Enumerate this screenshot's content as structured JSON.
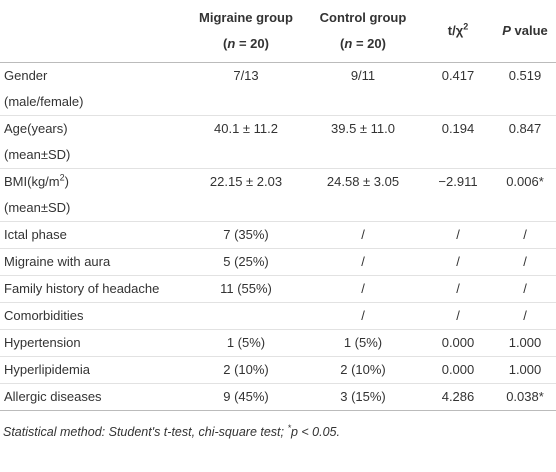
{
  "table": {
    "header": [
      [
        "Migraine group",
        "(",
        "n",
        " = 20)"
      ],
      [
        "Control group",
        "(",
        "n",
        " = 20)"
      ],
      [
        "t/χ",
        "2"
      ],
      [
        "P",
        " value"
      ]
    ],
    "rows": [
      {
        "label": [
          "Gender"
        ],
        "sub": "(male/female)",
        "cells": [
          "7/13",
          "9/11",
          "0.417",
          "0.519"
        ]
      },
      {
        "label": [
          "Age(years)"
        ],
        "sub": "(mean±SD)",
        "cells": [
          "40.1 ± 11.2",
          "39.5 ± 11.0",
          "0.194",
          "0.847"
        ]
      },
      {
        "label": [
          "BMI(kg/m",
          "2",
          ")"
        ],
        "sub": "(mean±SD)",
        "cells": [
          "22.15 ± 2.03",
          "24.58 ± 3.05",
          "−2.911",
          "0.006*"
        ]
      },
      {
        "label": [
          "Ictal phase"
        ],
        "cells": [
          "7 (35%)",
          "/",
          "/",
          "/"
        ]
      },
      {
        "label": [
          "Migraine with aura"
        ],
        "cells": [
          "5 (25%)",
          "/",
          "/",
          "/"
        ]
      },
      {
        "label": [
          "Family history of headache"
        ],
        "cells": [
          "11 (55%)",
          "/",
          "/",
          "/"
        ]
      },
      {
        "label": [
          "Comorbidities"
        ],
        "cells": [
          "",
          "/",
          "/",
          "/"
        ]
      },
      {
        "label": [
          "Hypertension"
        ],
        "cells": [
          "1 (5%)",
          "1 (5%)",
          "0.000",
          "1.000"
        ]
      },
      {
        "label": [
          "Hyperlipidemia"
        ],
        "cells": [
          "2 (10%)",
          "2 (10%)",
          "0.000",
          "1.000"
        ]
      },
      {
        "label": [
          "Allergic diseases"
        ],
        "cells": [
          "9 (45%)",
          "3 (15%)",
          "4.286",
          "0.038*"
        ]
      }
    ],
    "footnote": [
      "Statistical method: Student's t-test, chi-square test; ",
      "*",
      "p < 0.05."
    ]
  }
}
